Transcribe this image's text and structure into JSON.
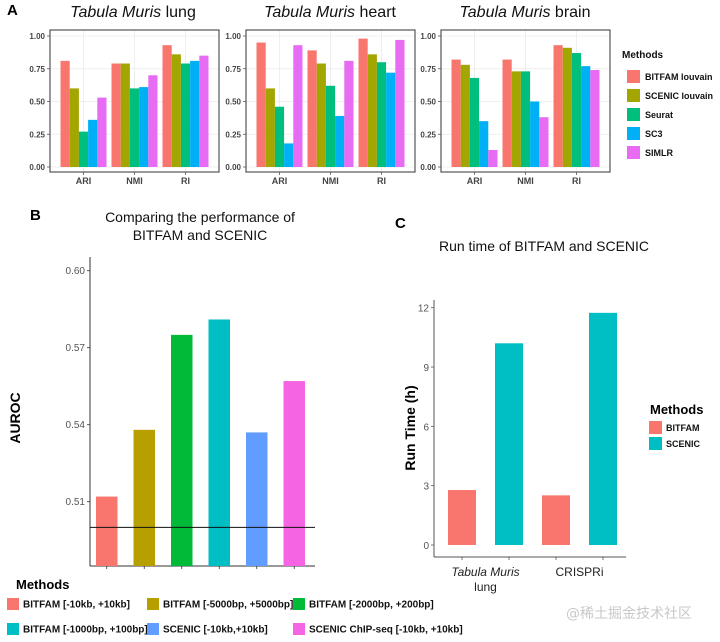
{
  "chart_data": [
    {
      "panel": "A",
      "type": "bar",
      "title": "Tabula Muris lung",
      "title_italic": "Tabula Muris",
      "title_rest": "lung",
      "categories": [
        "ARI",
        "NMI",
        "RI"
      ],
      "yticks": [
        "0.00",
        "0.25",
        "0.50",
        "0.75",
        "1.00"
      ],
      "ylim": [
        0,
        1
      ],
      "grid": true,
      "series": [
        {
          "name": "BITFAM louvain",
          "values": [
            0.81,
            0.79,
            0.93
          ]
        },
        {
          "name": "SCENIC louvain",
          "values": [
            0.6,
            0.79,
            0.86
          ]
        },
        {
          "name": "Seurat",
          "values": [
            0.27,
            0.6,
            0.79
          ]
        },
        {
          "name": "SC3",
          "values": [
            0.36,
            0.61,
            0.81
          ]
        },
        {
          "name": "SIMLR",
          "values": [
            0.53,
            0.7,
            0.85
          ]
        }
      ]
    },
    {
      "panel": "A",
      "type": "bar",
      "title": "Tabula Muris heart",
      "title_italic": "Tabula Muris",
      "title_rest": "heart",
      "categories": [
        "ARI",
        "NMI",
        "RI"
      ],
      "yticks": [
        "0.00",
        "0.25",
        "0.50",
        "0.75",
        "1.00"
      ],
      "ylim": [
        0,
        1
      ],
      "grid": true,
      "series": [
        {
          "name": "BITFAM louvain",
          "values": [
            0.95,
            0.89,
            0.98
          ]
        },
        {
          "name": "SCENIC louvain",
          "values": [
            0.6,
            0.79,
            0.86
          ]
        },
        {
          "name": "Seurat",
          "values": [
            0.46,
            0.62,
            0.8
          ]
        },
        {
          "name": "SC3",
          "values": [
            0.18,
            0.39,
            0.72
          ]
        },
        {
          "name": "SIMLR",
          "values": [
            0.93,
            0.81,
            0.97
          ]
        }
      ]
    },
    {
      "panel": "A",
      "type": "bar",
      "title": "Tabula Muris brain",
      "title_italic": "Tabula Muris",
      "title_rest": "brain",
      "categories": [
        "ARI",
        "NMI",
        "RI"
      ],
      "yticks": [
        "0.00",
        "0.25",
        "0.50",
        "0.75",
        "1.00"
      ],
      "ylim": [
        0,
        1
      ],
      "grid": true,
      "series": [
        {
          "name": "BITFAM louvain",
          "values": [
            0.82,
            0.82,
            0.93
          ]
        },
        {
          "name": "SCENIC louvain",
          "values": [
            0.78,
            0.73,
            0.91
          ]
        },
        {
          "name": "Seurat",
          "values": [
            0.68,
            0.73,
            0.87
          ]
        },
        {
          "name": "SC3",
          "values": [
            0.35,
            0.5,
            0.77
          ]
        },
        {
          "name": "SIMLR",
          "values": [
            0.13,
            0.38,
            0.74
          ]
        }
      ]
    },
    {
      "panel": "B",
      "type": "bar",
      "title": "Comparing the performance of BITFAM and SCENIC",
      "title_lines": [
        "Comparing the performance of",
        "BITFAM and SCENIC"
      ],
      "xlabel": "",
      "ylabel": "AUROC",
      "ylim": [
        0.485,
        0.605
      ],
      "yticks": [
        "0.51",
        "0.54",
        "0.57",
        "0.60"
      ],
      "reference_line": 0.5,
      "categories": [
        "BITFAM [-10kb, +10kb]",
        "BITFAM [-5000bp, +5000bp]",
        "BITFAM [-2000bp, +200bp]",
        "BITFAM [-1000bp, +100bp]",
        "SCENIC [-10kb,+10kb]",
        "SCENIC ChIP-seq [-10kb, +10kb]"
      ],
      "values": [
        0.512,
        0.538,
        0.575,
        0.581,
        0.537,
        0.557
      ],
      "legend_title": "Methods",
      "legend_position": "bottom",
      "grid": false
    },
    {
      "panel": "C",
      "type": "bar",
      "title": "Run time of BITFAM and SCENIC",
      "xlabel": "",
      "ylabel": "Run Time (h)",
      "ylim": [
        0,
        12.6
      ],
      "yticks": [
        "0",
        "3",
        "6",
        "9",
        "12"
      ],
      "categories": [
        "Tabula Muris lung",
        "CRISPRi"
      ],
      "category_lines": [
        [
          "Tabula Muris",
          "lung"
        ],
        [
          "CRISPRi"
        ]
      ],
      "series": [
        {
          "name": "BITFAM",
          "values": [
            2.78,
            2.51
          ]
        },
        {
          "name": "SCENIC",
          "values": [
            10.2,
            11.74
          ]
        }
      ],
      "legend_title": "Methods",
      "legend_position": "right",
      "grid": false
    }
  ],
  "panel_labels": {
    "a": "A",
    "b": "B",
    "c": "C"
  },
  "legend_a": {
    "title": "Methods",
    "items": [
      {
        "label": "BITFAM louvain",
        "color": "#F8766D"
      },
      {
        "label": "SCENIC louvain",
        "color": "#A3A500"
      },
      {
        "label": "Seurat",
        "color": "#00BF7D"
      },
      {
        "label": "SC3",
        "color": "#00B0F6"
      },
      {
        "label": "SIMLR",
        "color": "#E76BF3"
      }
    ]
  },
  "legend_b": {
    "title": "Methods",
    "items": [
      {
        "label": "BITFAM [-10kb, +10kb]",
        "color": "#F8766D"
      },
      {
        "label": "BITFAM [-5000bp, +5000bp]",
        "color": "#B79F00"
      },
      {
        "label": "BITFAM [-2000bp, +200bp]",
        "color": "#00BA38"
      },
      {
        "label": "BITFAM [-1000bp, +100bp]",
        "color": "#00BFC4"
      },
      {
        "label": "SCENIC [-10kb,+10kb]",
        "color": "#619CFF"
      },
      {
        "label": "SCENIC ChIP-seq [-10kb, +10kb]",
        "color": "#F564E3"
      }
    ]
  },
  "legend_c": {
    "title": "Methods",
    "items": [
      {
        "label": "BITFAM",
        "color": "#F8766D"
      },
      {
        "label": "SCENIC",
        "color": "#00BFC4"
      }
    ]
  },
  "watermark": "@稀土掘金技术社区"
}
